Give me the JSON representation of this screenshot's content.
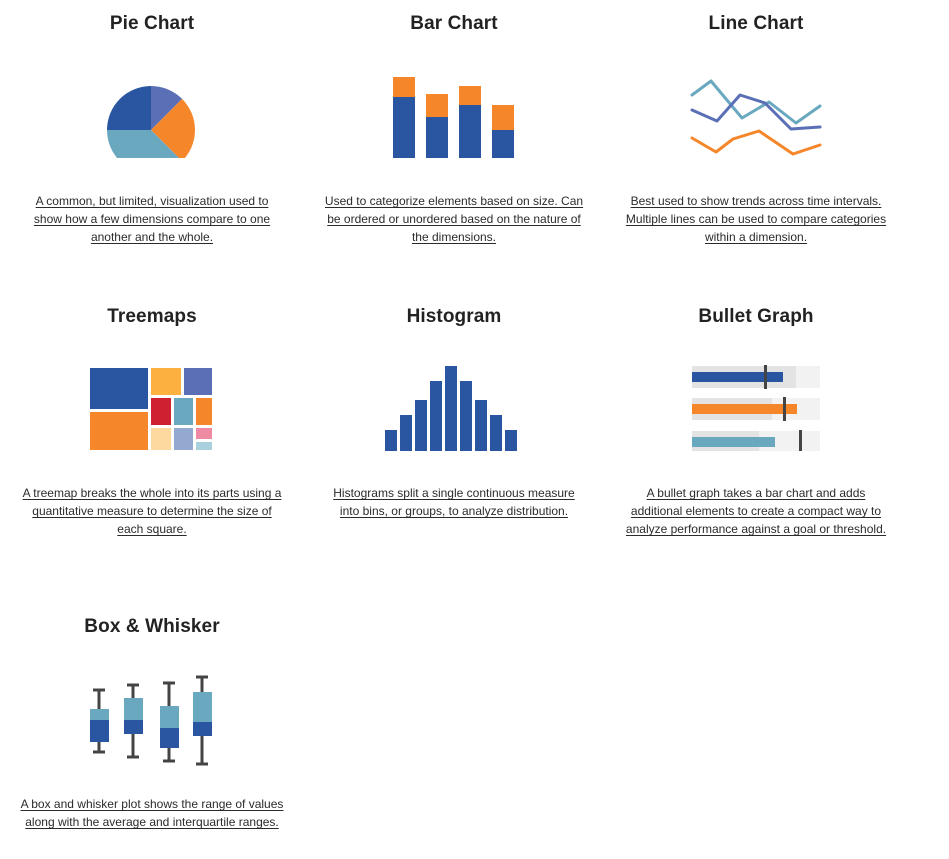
{
  "cards": [
    {
      "title": "Pie Chart",
      "description": "A common, but limited, visualization used to show how a few dimensions compare to one another and the whole."
    },
    {
      "title": "Bar Chart",
      "description": "Used to categorize elements based on size. Can be ordered or unordered based on the nature of the dimensions."
    },
    {
      "title": "Line Chart",
      "description": "Best used to show trends across time intervals. Multiple lines can be used to compare categories within a dimension."
    },
    {
      "title": "Treemaps",
      "description": "A treemap breaks the whole into its parts using a quantitative measure to determine the size of each square."
    },
    {
      "title": "Histogram",
      "description": "Histograms split a single continuous measure into bins, or groups, to analyze distribution."
    },
    {
      "title": "Bullet Graph",
      "description": "A bullet graph takes a bar chart and adds additional elements to create a compact way to analyze performance against a goal or threshold."
    },
    {
      "title": "Box & Whisker",
      "description": "A box and whisker plot shows the range of values along with the average and interquartile ranges."
    }
  ],
  "colors": {
    "dark_blue": "#2a55a0",
    "orange": "#f5862a",
    "teal": "#6aa8c0",
    "slate_blue": "#5a6fb6",
    "gold": "#fbb040",
    "red": "#cf2031",
    "peach": "#fdd9a0",
    "lavender": "#94a9cf",
    "pink": "#ee8ba2",
    "light_teal": "#a8d0dd",
    "track_light": "#f2f2f2",
    "track_mid": "#e3e3e3",
    "marker": "#444444"
  },
  "icons": [
    "pie-chart-icon",
    "bar-chart-icon",
    "line-chart-icon",
    "treemap-icon",
    "histogram-icon",
    "bullet-graph-icon",
    "box-whisker-icon"
  ]
}
